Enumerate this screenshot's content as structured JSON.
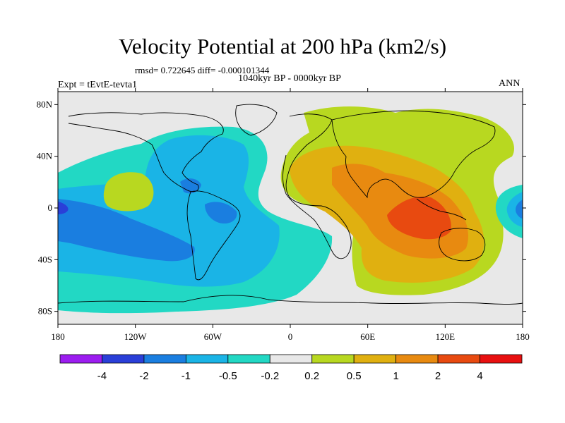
{
  "title": "Velocity Potential at 200 hPa (km2/s)",
  "stats_line": "rmsd= 0.722645  diff= -0.000101344",
  "subtitle": "1040kyr BP - 0000kyr BP",
  "experiment": "Expt = tEvtE-tevta1",
  "season": "ANN",
  "map": {
    "projection": "cylindrical-equidistant",
    "lon_range": [
      -180,
      180
    ],
    "lat_range": [
      -90,
      90
    ],
    "lat_ticks": [
      {
        "value": 80,
        "label": "80N"
      },
      {
        "value": 40,
        "label": "40N"
      },
      {
        "value": 0,
        "label": "0"
      },
      {
        "value": -40,
        "label": "40S"
      },
      {
        "value": -80,
        "label": "80S"
      }
    ],
    "lon_ticks": [
      {
        "value": -180,
        "label": "180"
      },
      {
        "value": -120,
        "label": "120W"
      },
      {
        "value": -60,
        "label": "60W"
      },
      {
        "value": 0,
        "label": "0"
      },
      {
        "value": 60,
        "label": "60E"
      },
      {
        "value": 120,
        "label": "120E"
      },
      {
        "value": 180,
        "label": "180"
      }
    ]
  },
  "colorbar": {
    "levels": [
      "-4",
      "-2",
      "-1",
      "-0.5",
      "-0.2",
      "0.2",
      "0.5",
      "1",
      "2",
      "4"
    ],
    "colors": [
      "#9c1df0",
      "#2a3fd8",
      "#1a7ee0",
      "#1ab4e6",
      "#22d8c4",
      "#e8e8e8",
      "#b8d820",
      "#e0b010",
      "#e88a10",
      "#e84a10",
      "#e81010"
    ]
  },
  "field_colors": {
    "neutral": "#e8e8e8",
    "neg_02": "#22d8c4",
    "neg_05": "#1ab4e6",
    "neg_1": "#1a7ee0",
    "neg_2": "#2a3fd8",
    "pos_02": "#b8d820",
    "pos_05": "#e0b010",
    "pos_1": "#e88a10",
    "pos_2": "#e84a10"
  }
}
